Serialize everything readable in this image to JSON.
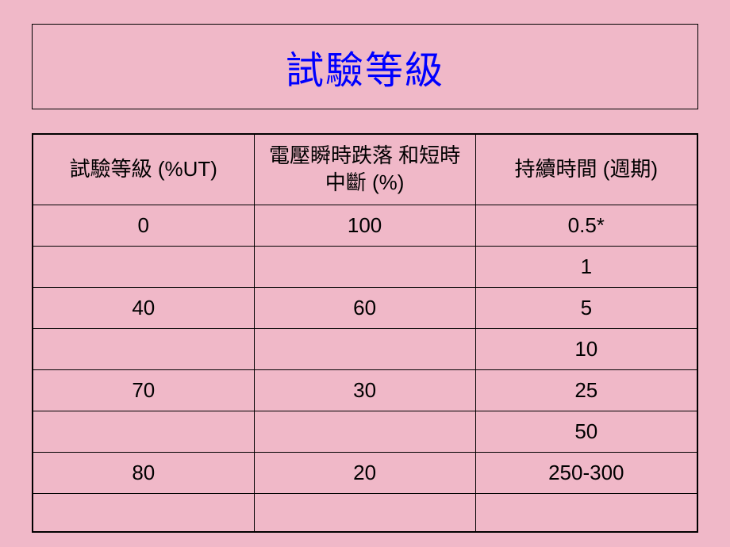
{
  "layout": {
    "background_color": "#f0b8c8",
    "title_border_color": "#000000",
    "table_border_color": "#000000",
    "title_color": "#0000ff",
    "text_color": "#000000",
    "title_fontsize": 48,
    "cell_fontsize": 26
  },
  "title": "試驗等級",
  "table": {
    "columns": [
      "試驗等級 (%UT)",
      "電壓瞬時跌落 和短時中斷 (%)",
      "持續時間 (週期)"
    ],
    "rows": [
      [
        "0",
        "100",
        "0.5*"
      ],
      [
        "",
        "",
        "1"
      ],
      [
        "40",
        "60",
        "5"
      ],
      [
        "",
        "",
        "10"
      ],
      [
        "70",
        "30",
        "25"
      ],
      [
        "",
        "",
        "50"
      ],
      [
        "80",
        "20",
        "250-300"
      ],
      [
        "",
        "",
        ""
      ]
    ]
  }
}
